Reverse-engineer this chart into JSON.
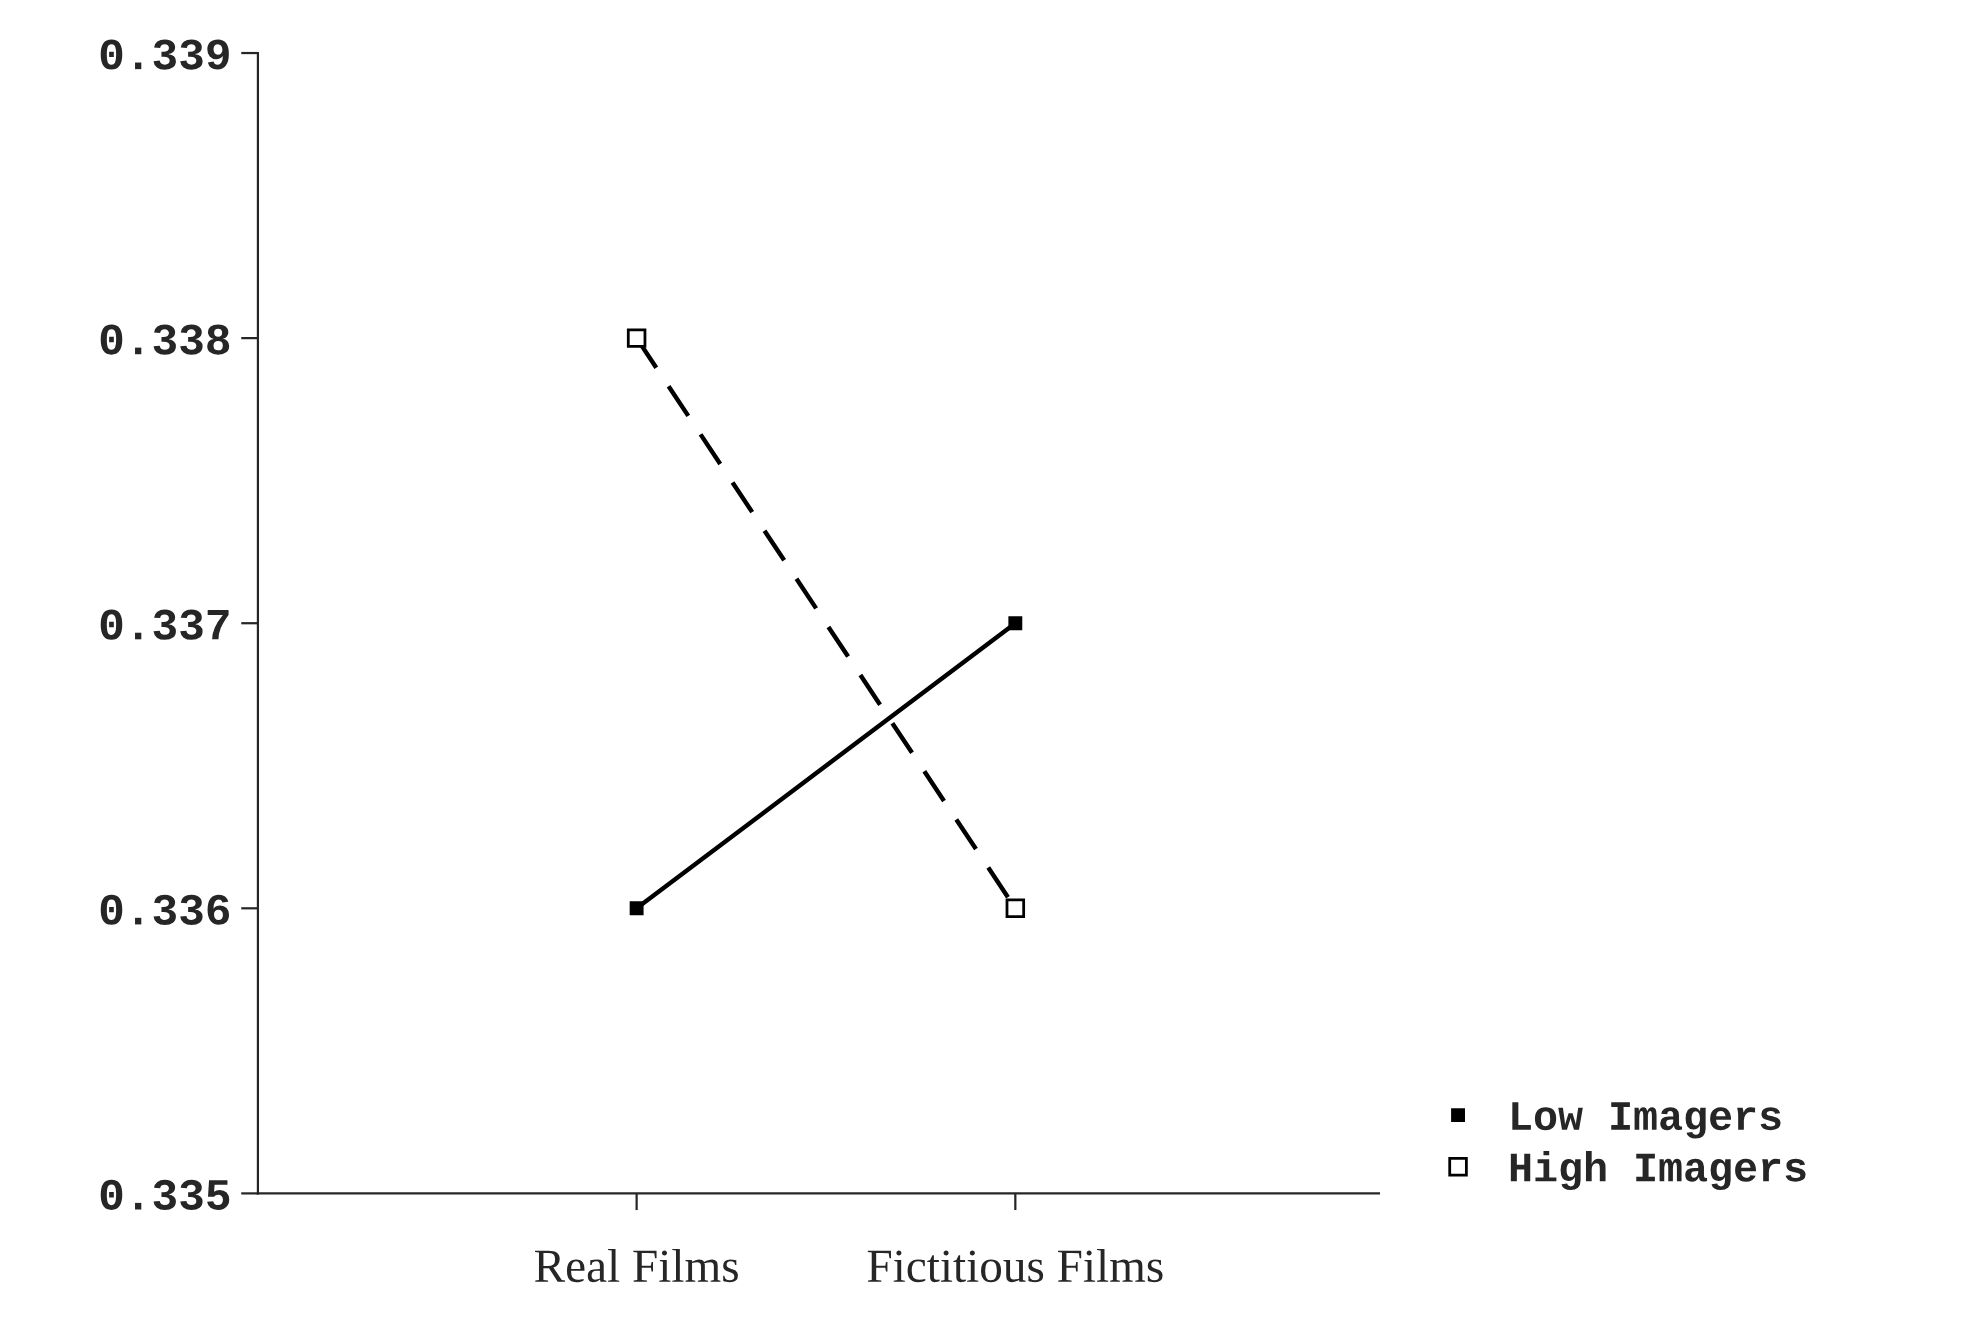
{
  "chart_data": {
    "type": "line",
    "categories": [
      "Real Films",
      "Fictitious Films"
    ],
    "series": [
      {
        "name": "Low Imagers",
        "color": "#000000",
        "values": [
          0.336,
          0.337
        ],
        "line_style": "solid"
      },
      {
        "name": "High Imagers",
        "color": "#000000",
        "values": [
          0.338,
          0.336
        ],
        "line_style": "dashed"
      }
    ],
    "ylim": [
      0.335,
      0.339
    ],
    "yticks": [
      {
        "value": 0.335,
        "label": "0.335"
      },
      {
        "value": 0.336,
        "label": "0.336"
      },
      {
        "value": 0.337,
        "label": "0.337"
      },
      {
        "value": 0.338,
        "label": "0.338"
      },
      {
        "value": 0.339,
        "label": "0.339"
      }
    ],
    "marker": "square",
    "legend": "bottom right",
    "grid": false
  }
}
